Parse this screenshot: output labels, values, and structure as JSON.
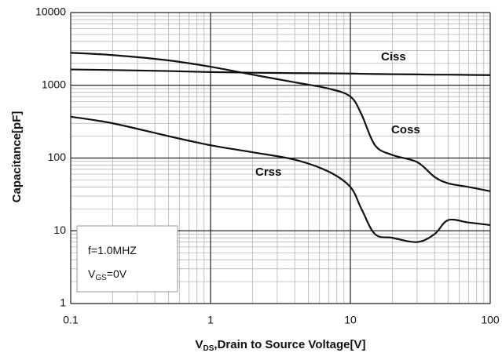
{
  "chart_data": {
    "type": "line",
    "x_label": [
      "V",
      "DS",
      ",Drain to Source Voltage[V]"
    ],
    "y_label": "Capacitance[pF]",
    "x": [
      0.1,
      0.2,
      0.5,
      1,
      2,
      4,
      7,
      10,
      12,
      15,
      20,
      30,
      40,
      50,
      70,
      100
    ],
    "series": [
      {
        "name": "Ciss",
        "color": "#111111",
        "values": [
          1650,
          1620,
          1570,
          1520,
          1490,
          1470,
          1460,
          1450,
          1440,
          1430,
          1420,
          1410,
          1400,
          1400,
          1390,
          1380
        ]
      },
      {
        "name": "Coss",
        "color": "#111111",
        "values": [
          2800,
          2600,
          2200,
          1800,
          1400,
          1100,
          900,
          700,
          400,
          150,
          110,
          88,
          55,
          45,
          40,
          35
        ]
      },
      {
        "name": "Crss",
        "color": "#111111",
        "values": [
          370,
          300,
          200,
          150,
          120,
          95,
          65,
          40,
          20,
          9,
          8,
          7,
          9,
          14,
          13,
          12
        ]
      }
    ],
    "notes": [
      [
        "f=1.0MHZ"
      ],
      [
        "V",
        "GS",
        "=0V"
      ]
    ],
    "xlim": [
      0.1,
      100
    ],
    "ylim": [
      1,
      10000
    ],
    "xticks": [
      0.1,
      1,
      10,
      100
    ],
    "yticks": [
      1,
      10,
      100,
      1000,
      10000
    ],
    "xscale": "log",
    "yscale": "log",
    "grid": true,
    "minor_grid": true
  }
}
